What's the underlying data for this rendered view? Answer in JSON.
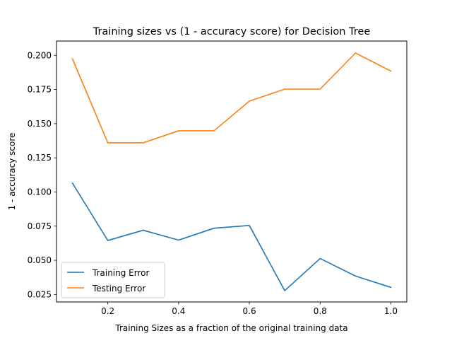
{
  "chart_data": {
    "type": "line",
    "title": "Training sizes vs (1 - accuracy score) for Decision Tree",
    "xlabel": "Training Sizes as a fraction of the original training data",
    "ylabel": "1 - accuracy score",
    "x": [
      0.1,
      0.2,
      0.3,
      0.4,
      0.5,
      0.6,
      0.7,
      0.8,
      0.9,
      1.0
    ],
    "xlim": [
      0.055,
      1.045
    ],
    "ylim": [
      0.0195,
      0.2105
    ],
    "xticks": [
      0.2,
      0.4,
      0.6,
      0.8,
      1.0
    ],
    "xtick_labels": [
      "0.2",
      "0.4",
      "0.6",
      "0.8",
      "1.0"
    ],
    "yticks": [
      0.025,
      0.05,
      0.075,
      0.1,
      0.125,
      0.15,
      0.175,
      0.2
    ],
    "ytick_labels": [
      "0.025",
      "0.050",
      "0.075",
      "0.100",
      "0.125",
      "0.150",
      "0.175",
      "0.200"
    ],
    "grid": false,
    "legend_position": "lower-left",
    "series": [
      {
        "name": "Training Error",
        "color": "#1f77b4",
        "values": [
          0.1065,
          0.0645,
          0.072,
          0.0648,
          0.0735,
          0.0755,
          0.0278,
          0.0513,
          0.0385,
          0.0302
        ]
      },
      {
        "name": "Testing Error",
        "color": "#ff7f0e",
        "values": [
          0.1975,
          0.136,
          0.136,
          0.1448,
          0.1448,
          0.1665,
          0.1753,
          0.1753,
          0.2017,
          0.1885
        ]
      }
    ]
  }
}
